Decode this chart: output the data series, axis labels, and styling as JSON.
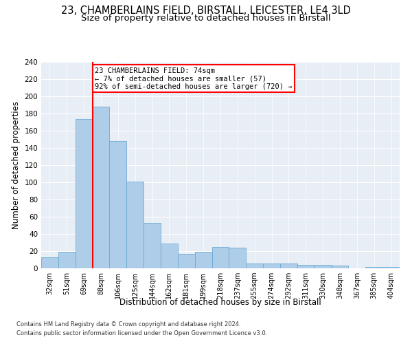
{
  "title1": "23, CHAMBERLAINS FIELD, BIRSTALL, LEICESTER, LE4 3LD",
  "title2": "Size of property relative to detached houses in Birstall",
  "xlabel": "Distribution of detached houses by size in Birstall",
  "ylabel": "Number of detached properties",
  "categories": [
    "32sqm",
    "51sqm",
    "69sqm",
    "88sqm",
    "106sqm",
    "125sqm",
    "144sqm",
    "162sqm",
    "181sqm",
    "199sqm",
    "218sqm",
    "237sqm",
    "255sqm",
    "274sqm",
    "292sqm",
    "311sqm",
    "330sqm",
    "348sqm",
    "367sqm",
    "385sqm",
    "404sqm"
  ],
  "values": [
    13,
    19,
    174,
    188,
    148,
    101,
    53,
    29,
    17,
    19,
    25,
    24,
    6,
    6,
    6,
    4,
    4,
    3,
    0,
    2,
    2
  ],
  "bar_color": "#aecde8",
  "bar_edge_color": "#6aaad4",
  "red_line_index": 2,
  "annotation_line1": "23 CHAMBERLAINS FIELD: 74sqm",
  "annotation_line2": "← 7% of detached houses are smaller (57)",
  "annotation_line3": "92% of semi-detached houses are larger (720) →",
  "ylim": [
    0,
    240
  ],
  "yticks": [
    0,
    20,
    40,
    60,
    80,
    100,
    120,
    140,
    160,
    180,
    200,
    220,
    240
  ],
  "footnote1": "Contains HM Land Registry data © Crown copyright and database right 2024.",
  "footnote2": "Contains public sector information licensed under the Open Government Licence v3.0.",
  "bg_color": "#e8eef5",
  "title1_fontsize": 10.5,
  "title2_fontsize": 9.5,
  "xlabel_fontsize": 8.5,
  "ylabel_fontsize": 8.5,
  "annot_fontsize": 7.5,
  "tick_fontsize": 7,
  "ytick_fontsize": 7.5
}
